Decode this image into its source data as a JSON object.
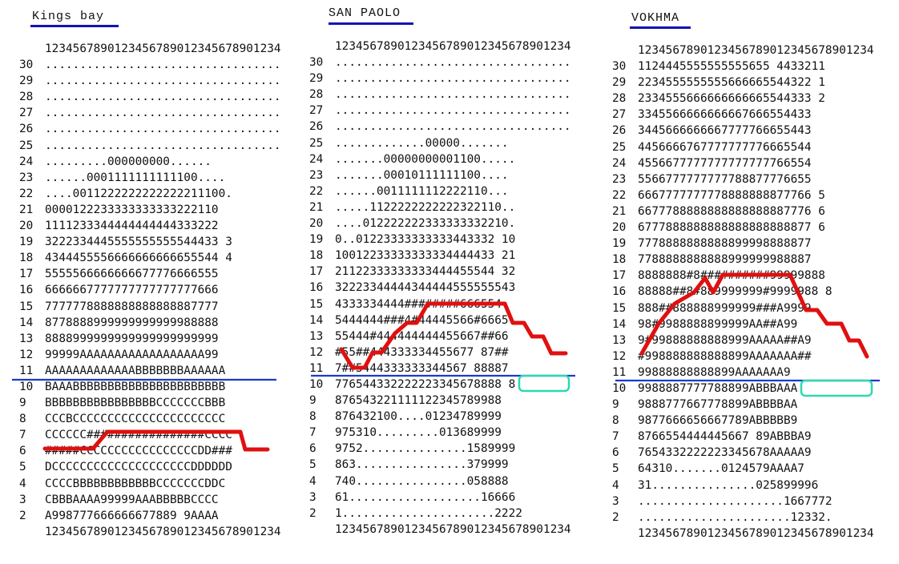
{
  "panels": [
    {
      "title": "Kings bay",
      "header": "1234567890123456789012345678901234",
      "footer": "1234567890123456789012345678901234",
      "rows": [
        {
          "label": "30",
          "data": ".................................."
        },
        {
          "label": "29",
          "data": ".................................."
        },
        {
          "label": "28",
          "data": ".................................."
        },
        {
          "label": "27",
          "data": ".................................."
        },
        {
          "label": "26",
          "data": ".................................."
        },
        {
          "label": "25",
          "data": ".................................."
        },
        {
          "label": "24",
          "data": ".........000000000......"
        },
        {
          "label": "23",
          "data": "......0001111111111100...."
        },
        {
          "label": "22",
          "data": "....0011222222222222211100."
        },
        {
          "label": "21",
          "data": "0000122233333333333222110"
        },
        {
          "label": "20",
          "data": "1111233344444444444333222"
        },
        {
          "label": "19",
          "data": "3222334445555555555544433 3"
        },
        {
          "label": "18",
          "data": "4344455556666666666655544 4"
        },
        {
          "label": "17",
          "data": "5555566666666677776666555"
        },
        {
          "label": "16",
          "data": "6666667777777777777777666"
        },
        {
          "label": "15",
          "data": "7777778888888888888887777"
        },
        {
          "label": "14",
          "data": "8778888999999999999988888"
        },
        {
          "label": "13",
          "data": "8888999999999999999999999"
        },
        {
          "label": "12",
          "data": "99999AAAAAAAAAAAAAAAAAA99"
        },
        {
          "label": "11",
          "data": "AAAAAAAAAAAAABBBBBBBAAAAAA"
        },
        {
          "label": "10",
          "data": "BAAABBBBBBBBBBBBBBBBBBBBBB"
        },
        {
          "label": "9",
          "data": "BBBBBBBBBBBBBBBBCCCCCCCBBB"
        },
        {
          "label": "8",
          "data": "CCCBCCCCCCCCCCCCCCCCCCCCCC"
        },
        {
          "label": "7",
          "data": "CCCCCC#################CCCC"
        },
        {
          "label": "6",
          "data": "#####CCCCCCCCCCCCCCCCCDD###"
        },
        {
          "label": "5",
          "data": "DCCCCCCCCCCCCCCCCCCCCDDDDDD"
        },
        {
          "label": "4",
          "data": "CCCCBBBBBBBBBBBBCCCCCCCDDC"
        },
        {
          "label": "3",
          "data": "CBBBAAAA99999AAABBBBBCCCC"
        },
        {
          "label": "2",
          "data": "A998777666666677889 9AAAA"
        }
      ]
    },
    {
      "title": "SAN PAOLO",
      "header": "1234567890123456789012345678901234",
      "footer": "1234567890123456789012345678901234",
      "rows": [
        {
          "label": "30",
          "data": ".................................."
        },
        {
          "label": "29",
          "data": ".................................."
        },
        {
          "label": "28",
          "data": ".................................."
        },
        {
          "label": "27",
          "data": ".................................."
        },
        {
          "label": "26",
          "data": ".................................."
        },
        {
          "label": "25",
          "data": ".............00000......."
        },
        {
          "label": "24",
          "data": ".......00000000001100....."
        },
        {
          "label": "23",
          "data": ".......00010111111100...."
        },
        {
          "label": "22",
          "data": "......0011111112222110..."
        },
        {
          "label": "21",
          "data": ".....1122222222222322110.."
        },
        {
          "label": "20",
          "data": "....012222222333333332210."
        },
        {
          "label": "19",
          "data": "0..01223333333333443332 10"
        },
        {
          "label": "18",
          "data": "10012233333333334444433 21"
        },
        {
          "label": "17",
          "data": "21122333333333444455544 32"
        },
        {
          "label": "16",
          "data": "32223344444344444555555543"
        },
        {
          "label": "15",
          "data": "4333334444########666554"
        },
        {
          "label": "14",
          "data": "5444444###4#44445566#6665"
        },
        {
          "label": "13",
          "data": "55444#444444444455667##66"
        },
        {
          "label": "12",
          "data": "#55##444333334455677 87##"
        },
        {
          "label": "11",
          "data": "7##5444333333344567 88887"
        },
        {
          "label": "10",
          "data": "776544332222223345678888 8"
        },
        {
          "label": "9",
          "data": "876543221111122345789988"
        },
        {
          "label": "8",
          "data": "876432100....01234789999"
        },
        {
          "label": "7",
          "data": "975310.........013689999"
        },
        {
          "label": "6",
          "data": "9752...............1589999"
        },
        {
          "label": "5",
          "data": "863................379999"
        },
        {
          "label": "4",
          "data": "740................058888"
        },
        {
          "label": "3",
          "data": "61...................16666"
        },
        {
          "label": "2",
          "data": "1......................2222"
        }
      ]
    },
    {
      "title": "VOKHMA",
      "header": "1234567890123456789012345678901234",
      "footer": "1234567890123456789012345678901234",
      "rows": [
        {
          "label": "30",
          "data": "1124445555555555655 4433211"
        },
        {
          "label": "29",
          "data": "2234555555555666665544322 1"
        },
        {
          "label": "28",
          "data": "2334555666666666665544333 2"
        },
        {
          "label": "27",
          "data": "3345566666666667666554433"
        },
        {
          "label": "26",
          "data": "3445666666667777766655443"
        },
        {
          "label": "25",
          "data": "4456666767777777776665544"
        },
        {
          "label": "24",
          "data": "4556677777777777777766554"
        },
        {
          "label": "23",
          "data": "5566777777777788877776655"
        },
        {
          "label": "22",
          "data": "6667777777778888888877766 5"
        },
        {
          "label": "21",
          "data": "6677788888888888888887776 6"
        },
        {
          "label": "20",
          "data": "6777888888888888888888877 6"
        },
        {
          "label": "19",
          "data": "7778888888888899998888877"
        },
        {
          "label": "18",
          "data": "7788888888888999999988887"
        },
        {
          "label": "17",
          "data": "8888888#8##########99999888"
        },
        {
          "label": "16",
          "data": "88888##8#889999999#9999988 8"
        },
        {
          "label": "15",
          "data": "888##888888999999###A9999"
        },
        {
          "label": "14",
          "data": "98#9988888899999AA##A99"
        },
        {
          "label": "13",
          "data": "9#99888888888999AAAAA##A9"
        },
        {
          "label": "12",
          "data": "#998888888888899AAAAAAA##"
        },
        {
          "label": "11",
          "data": "99888888888899AAAAAAA9"
        },
        {
          "label": "10",
          "data": "9988887777788899ABBBAAA"
        },
        {
          "label": "9",
          "data": "9888777667778899ABBBBAA"
        },
        {
          "label": "8",
          "data": "9877666656667789ABBBBB9"
        },
        {
          "label": "7",
          "data": "8766554444445667 89ABBBA9"
        },
        {
          "label": "6",
          "data": "7654332222223345678AAAAA9"
        },
        {
          "label": "5",
          "data": "64310.......0124579AAAA7"
        },
        {
          "label": "4",
          "data": "31...............025899996"
        },
        {
          "label": "3",
          "data": ".....................1667772"
        },
        {
          "label": "2",
          "data": "......................12332."
        }
      ]
    }
  ]
}
